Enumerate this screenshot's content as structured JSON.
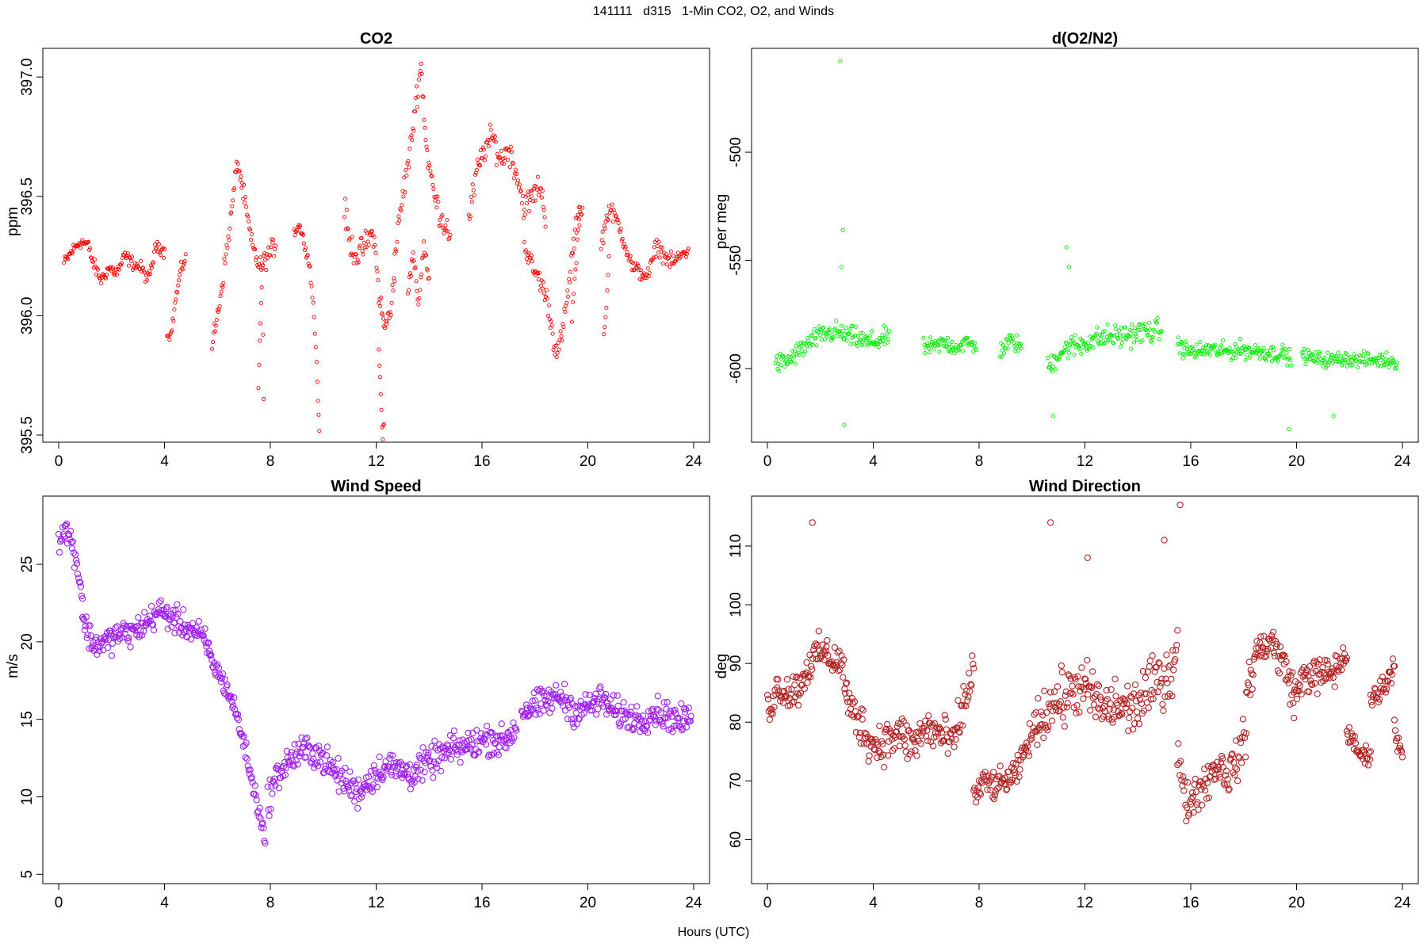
{
  "figure": {
    "title": "141111   d315   1-Min CO2, O2, and Winds",
    "xlabel": "Hours (UTC)"
  },
  "chart_data": [
    {
      "id": "co2",
      "type": "scatter",
      "title": "CO2",
      "ylabel": "ppm",
      "color": "#ff0000",
      "marker": "open-circle-small",
      "xlim": [
        -0.6,
        24.6
      ],
      "ylim": [
        395.47,
        397.12
      ],
      "xticks": [
        0,
        4,
        8,
        12,
        16,
        20,
        24
      ],
      "yticks": [
        395.5,
        396.0,
        396.5,
        397.0
      ],
      "ytick_labels": [
        "395.5",
        "396.0",
        "396.5",
        "397.0"
      ],
      "segments": [
        {
          "x": [
            0.2,
            0.5,
            0.8,
            1.1,
            1.3,
            1.6,
            1.9,
            2.2,
            2.5,
            2.8,
            3.1,
            3.4,
            3.7,
            4.0
          ],
          "y": [
            396.22,
            396.27,
            396.31,
            396.3,
            396.22,
            396.15,
            396.2,
            396.18,
            396.25,
            396.22,
            396.2,
            396.15,
            396.3,
            396.27
          ],
          "spread": 0.04
        },
        {
          "x": [
            4.1,
            4.25,
            4.4,
            4.6,
            4.8
          ],
          "y": [
            395.93,
            395.92,
            396.05,
            396.18,
            396.25
          ],
          "spread": 0.04
        },
        {
          "x": [
            5.8,
            6.0,
            6.2,
            6.5,
            6.75,
            7.0,
            7.3,
            7.6,
            7.9,
            8.2
          ],
          "y": [
            395.88,
            396.0,
            396.15,
            396.4,
            396.65,
            396.5,
            396.3,
            396.2,
            396.25,
            396.3
          ],
          "spread": 0.06
        },
        {
          "x": [
            7.55,
            7.6,
            7.65,
            7.7,
            7.75
          ],
          "y": [
            395.7,
            395.9,
            396.05,
            396.2,
            395.65
          ],
          "spread": 0.02
        },
        {
          "x": [
            8.9,
            9.1,
            9.3,
            9.5,
            9.65,
            9.75,
            9.8,
            9.85
          ],
          "y": [
            396.35,
            396.38,
            396.3,
            396.2,
            396.0,
            395.8,
            395.65,
            395.52
          ],
          "spread": 0.03
        },
        {
          "x": [
            10.8,
            11.0,
            11.3,
            11.6,
            11.9,
            12.1,
            12.3,
            12.5,
            12.7
          ],
          "y": [
            396.45,
            396.3,
            396.25,
            396.3,
            396.35,
            396.1,
            395.95,
            396.0,
            396.15
          ],
          "spread": 0.08
        },
        {
          "x": [
            12.1,
            12.15,
            12.2,
            12.25,
            12.3
          ],
          "y": [
            395.85,
            395.75,
            395.6,
            395.5,
            395.55
          ],
          "spread": 0.03
        },
        {
          "x": [
            12.7,
            13.0,
            13.3,
            13.5,
            13.7,
            13.9,
            14.2,
            14.5,
            14.8
          ],
          "y": [
            396.25,
            396.5,
            396.7,
            396.9,
            397.05,
            396.7,
            396.5,
            396.4,
            396.35
          ],
          "spread": 0.08
        },
        {
          "x": [
            13.2,
            13.4,
            13.6,
            13.8,
            14.0
          ],
          "y": [
            396.1,
            396.25,
            396.05,
            396.3,
            396.15
          ],
          "spread": 0.05
        },
        {
          "x": [
            15.5,
            15.8,
            16.1,
            16.4,
            16.7,
            17.0,
            17.3,
            17.6,
            17.9,
            18.2,
            18.4
          ],
          "y": [
            396.4,
            396.6,
            396.7,
            396.75,
            396.65,
            396.7,
            396.6,
            396.45,
            396.5,
            396.55,
            396.4
          ],
          "spread": 0.08
        },
        {
          "x": [
            17.6,
            17.9,
            18.2,
            18.5,
            18.7,
            18.85,
            19.0,
            19.2,
            19.4,
            19.6,
            19.8
          ],
          "y": [
            396.3,
            396.2,
            396.15,
            396.05,
            395.9,
            395.85,
            395.9,
            396.05,
            396.25,
            396.4,
            396.45
          ],
          "spread": 0.07
        },
        {
          "x": [
            19.4,
            19.5,
            19.6,
            19.7
          ],
          "y": [
            396.0,
            396.15,
            396.3,
            396.45
          ],
          "spread": 0.05
        },
        {
          "x": [
            20.5,
            20.8,
            21.1,
            21.4,
            21.7,
            22.0,
            22.3,
            22.6,
            22.9,
            23.2,
            23.5,
            23.8
          ],
          "y": [
            396.3,
            396.45,
            396.4,
            396.3,
            396.2,
            396.18,
            396.17,
            396.3,
            396.25,
            396.22,
            396.25,
            396.28
          ],
          "spread": 0.05
        },
        {
          "x": [
            20.6,
            20.7,
            20.8
          ],
          "y": [
            395.9,
            396.05,
            396.25
          ],
          "spread": 0.04
        }
      ]
    },
    {
      "id": "o2",
      "type": "scatter",
      "title": "d(O2/N2)",
      "ylabel": "per meg",
      "color": "#00ee00",
      "marker": "open-circle-small",
      "xlim": [
        -0.6,
        24.6
      ],
      "ylim": [
        -634,
        -452
      ],
      "xticks": [
        0,
        4,
        8,
        12,
        16,
        20,
        24
      ],
      "yticks": [
        -600,
        -550,
        -500
      ],
      "ytick_labels": [
        "-600",
        "-550",
        "-500"
      ],
      "segments": [
        {
          "x": [
            0.3,
            0.7,
            1.0,
            1.4,
            1.8,
            2.2,
            2.6,
            3.0,
            3.4,
            3.8,
            4.2,
            4.6
          ],
          "y": [
            -598,
            -597,
            -594,
            -590,
            -586,
            -584,
            -583,
            -585,
            -586,
            -588,
            -587,
            -585
          ],
          "spread": 7
        },
        {
          "x": [
            5.9,
            6.3,
            6.7,
            7.1,
            7.5,
            7.9
          ],
          "y": [
            -590,
            -590,
            -588,
            -590,
            -588,
            -590
          ],
          "spread": 6
        },
        {
          "x": [
            8.8,
            9.2,
            9.6
          ],
          "y": [
            -592,
            -587,
            -590
          ],
          "spread": 6
        },
        {
          "x": [
            10.6,
            11.0,
            11.4,
            11.8,
            12.2,
            12.6,
            13.0,
            13.4,
            13.8,
            14.2,
            14.6,
            14.9
          ],
          "y": [
            -600,
            -593,
            -590,
            -589,
            -587,
            -586,
            -585,
            -585,
            -584,
            -583,
            -583,
            -582
          ],
          "spread": 8
        },
        {
          "x": [
            15.5,
            15.9,
            16.3,
            16.7,
            17.1,
            17.5,
            17.9,
            18.3,
            18.7,
            19.1,
            19.5,
            19.8
          ],
          "y": [
            -589,
            -592,
            -592,
            -591,
            -592,
            -592,
            -591,
            -592,
            -592,
            -593,
            -593,
            -596
          ],
          "spread": 6
        },
        {
          "x": [
            20.2,
            20.6,
            21.0,
            21.4,
            21.8,
            22.2,
            22.6,
            23.0,
            23.4,
            23.8
          ],
          "y": [
            -594,
            -595,
            -596,
            -596,
            -595,
            -596,
            -596,
            -596,
            -596,
            -597
          ],
          "spread": 5
        }
      ],
      "outliers": {
        "x": [
          2.75,
          2.85,
          2.8,
          2.9,
          11.3,
          11.4,
          10.8,
          19.7,
          21.4
        ],
        "y": [
          -458,
          -536,
          -553,
          -626,
          -544,
          -553,
          -622,
          -628,
          -622
        ]
      }
    },
    {
      "id": "wind_speed",
      "type": "scatter",
      "title": "Wind Speed",
      "ylabel": "m/s",
      "color": "#a020f0",
      "marker": "open-circle-large",
      "xlim": [
        -0.6,
        24.6
      ],
      "ylim": [
        4.4,
        29.4
      ],
      "xticks": [
        0,
        4,
        8,
        12,
        16,
        20,
        24
      ],
      "yticks": [
        5,
        10,
        15,
        20,
        25
      ],
      "ytick_labels": [
        "5",
        "10",
        "15",
        "20",
        "25"
      ],
      "segments": [
        {
          "x": [
            0.0,
            0.3,
            0.6,
            0.9
          ],
          "y": [
            26.5,
            27.3,
            25.8,
            23.0
          ],
          "spread": 1.2
        },
        {
          "x": [
            0.9,
            1.3,
            1.8,
            2.3,
            2.8,
            3.3,
            3.8,
            4.3,
            4.8,
            5.3,
            5.7
          ],
          "y": [
            21.5,
            19.8,
            20.0,
            20.5,
            20.6,
            21.2,
            22.0,
            21.5,
            21.0,
            20.5,
            19.5
          ],
          "spread": 1.3
        },
        {
          "x": [
            5.7,
            6.2,
            6.6,
            7.0,
            7.3,
            7.6,
            7.8
          ],
          "y": [
            19.0,
            17.5,
            16.0,
            13.5,
            11.0,
            9.0,
            7.0
          ],
          "spread": 1.0
        },
        {
          "x": [
            7.9,
            8.3,
            8.8,
            9.3,
            9.8,
            10.3,
            10.8,
            11.3,
            11.8,
            12.3,
            12.8,
            13.3,
            13.8,
            14.3,
            14.8,
            15.3,
            15.8,
            16.3,
            16.8,
            17.3
          ],
          "y": [
            9.8,
            11.5,
            12.5,
            13.0,
            12.8,
            11.8,
            11.0,
            10.3,
            11.2,
            12.0,
            11.8,
            11.5,
            12.0,
            12.5,
            13.0,
            13.2,
            13.5,
            13.8,
            13.5,
            14.5
          ],
          "spread": 1.5
        },
        {
          "x": [
            17.5,
            18.0,
            18.5,
            19.0,
            19.5,
            20.0,
            20.5,
            21.0,
            21.5,
            22.0,
            22.5,
            23.0,
            23.5,
            23.9
          ],
          "y": [
            15.5,
            15.8,
            16.2,
            16.5,
            15.5,
            15.8,
            16.3,
            15.5,
            15.2,
            15.0,
            15.5,
            15.3,
            14.8,
            15.2
          ],
          "spread": 1.4
        }
      ]
    },
    {
      "id": "wind_direction",
      "type": "scatter",
      "title": "Wind Direction",
      "ylabel": "deg",
      "color": "#b22222",
      "marker": "open-circle-large",
      "xlim": [
        -0.6,
        24.6
      ],
      "ylim": [
        52.5,
        118.5
      ],
      "xticks": [
        0,
        4,
        8,
        12,
        16,
        20,
        24
      ],
      "yticks": [
        60,
        70,
        80,
        90,
        100,
        110
      ],
      "ytick_labels": [
        "60",
        "70",
        "80",
        "90",
        "100",
        "110"
      ],
      "segments": [
        {
          "x": [
            0.0,
            0.4,
            0.8,
            1.2,
            1.6,
            2.0,
            2.4,
            2.8,
            3.0
          ],
          "y": [
            82,
            86,
            85,
            86,
            90,
            92,
            91,
            90,
            86
          ],
          "spread": 4.5
        },
        {
          "x": [
            3.0,
            3.5,
            4.0,
            4.5,
            5.0,
            5.5,
            6.0,
            6.5,
            7.0,
            7.5,
            7.8
          ],
          "y": [
            83,
            80,
            76,
            77,
            78,
            76,
            79,
            78,
            76,
            84,
            90
          ],
          "spread": 5.5
        },
        {
          "x": [
            7.8,
            8.2,
            8.6,
            9.0,
            9.4,
            9.8,
            10.2
          ],
          "y": [
            67,
            70,
            69,
            70,
            71,
            76,
            80
          ],
          "spread": 3.5
        },
        {
          "x": [
            10.2,
            10.7,
            11.2,
            11.7,
            12.2,
            12.7,
            13.2,
            13.7,
            14.2,
            14.7,
            15.2,
            15.5
          ],
          "y": [
            80,
            83,
            84,
            86,
            85,
            82,
            83,
            82,
            84,
            87,
            88,
            94
          ],
          "spread": 7
        },
        {
          "x": [
            15.5,
            15.8,
            16.2,
            16.6,
            17.0,
            17.4,
            17.8,
            18.1
          ],
          "y": [
            75,
            66,
            68,
            70,
            73,
            71,
            74,
            78
          ],
          "spread": 5
        },
        {
          "x": [
            18.1,
            18.5,
            19.0,
            19.5,
            19.9
          ],
          "y": [
            85,
            92,
            94,
            90,
            85
          ],
          "spread": 5
        },
        {
          "x": [
            19.9,
            20.3,
            20.7,
            21.1,
            21.5,
            21.9
          ],
          "y": [
            84,
            88,
            88,
            88,
            89,
            92
          ],
          "spread": 4.5
        },
        {
          "x": [
            21.9,
            22.2,
            22.5,
            22.8
          ],
          "y": [
            78,
            76,
            74,
            75
          ],
          "spread": 2.5
        },
        {
          "x": [
            22.8,
            23.1,
            23.4,
            23.7
          ],
          "y": [
            84,
            85,
            87,
            90
          ],
          "spread": 3
        },
        {
          "x": [
            23.7,
            23.85,
            24.0
          ],
          "y": [
            80,
            76,
            74
          ],
          "spread": 2.5
        }
      ],
      "outliers": {
        "x": [
          1.7,
          15.6,
          10.7,
          12.1,
          15.0
        ],
        "y": [
          114,
          117,
          114,
          108,
          111
        ]
      }
    }
  ]
}
